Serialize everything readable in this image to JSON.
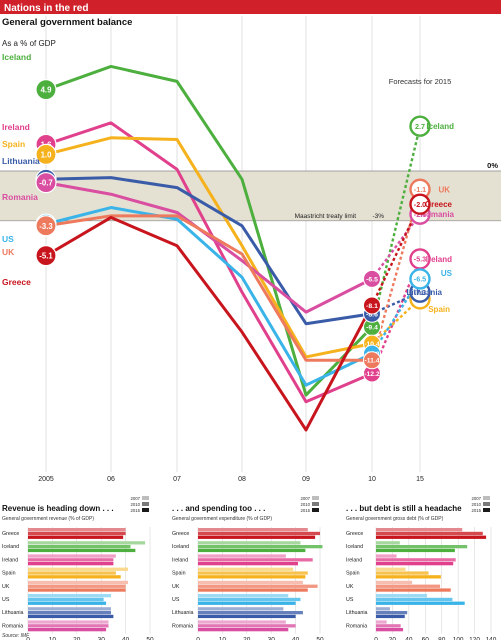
{
  "banner": {
    "title": "Nations in the red",
    "color": "#d0202a"
  },
  "main": {
    "title": "General government balance",
    "subtitle": "As a % of GDP",
    "forecast_note": "Forecasts for 2015",
    "maastricht_label": "Maastricht treaty limit",
    "maastricht_value": "-3%",
    "zero_label": "0%",
    "x_ticks": [
      "2005",
      "06",
      "07",
      "08",
      "09",
      "10",
      "15"
    ]
  },
  "chart_data": [
    {
      "type": "line",
      "title": "General government balance",
      "subtitle": "As a % of GDP",
      "x": [
        "2005",
        "06",
        "07",
        "08",
        "09",
        "10",
        "15"
      ],
      "ylim": [
        -14,
        6
      ],
      "reference_lines": [
        {
          "label": "0%",
          "value": 0
        },
        {
          "label": "Maastricht treaty limit",
          "value": -3
        }
      ],
      "series": [
        {
          "name": "Iceland",
          "color": "#4caf3e",
          "values": [
            4.9,
            6.3,
            5.4,
            -0.5,
            -13.5,
            -9.4,
            2.7
          ],
          "start_label": "4.9",
          "end_label": "2.7"
        },
        {
          "name": "Ireland",
          "color": "#e0408c",
          "values": [
            1.6,
            2.9,
            0.1,
            -7.3,
            -13.9,
            -12.2,
            -5.3
          ],
          "start_label": "1.6",
          "end_label": "-5.3"
        },
        {
          "name": "Spain",
          "color": "#f5b21c",
          "values": [
            1.0,
            2.0,
            1.9,
            -4.5,
            -11.2,
            -10.4,
            -7.7
          ],
          "start_label": "1.0",
          "end_label": "-7.7"
        },
        {
          "name": "Lithuania",
          "color": "#3a5ca8",
          "values": [
            -0.5,
            -0.4,
            -1.0,
            -3.3,
            -9.2,
            -8.6,
            -7.3
          ],
          "start_label": "-0.5",
          "end_label": "-7.3"
        },
        {
          "name": "Romania",
          "color": "#d94ea0",
          "values": [
            -0.7,
            -1.4,
            -2.5,
            -5.4,
            -8.5,
            -6.5,
            -2.6
          ],
          "start_label": "-0.7",
          "end_label": "-2.6"
        },
        {
          "name": "US",
          "color": "#3ab4e8",
          "values": [
            -3.2,
            -2.2,
            -2.9,
            -6.4,
            -12.9,
            -11.0,
            -6.5
          ],
          "start_label": "-3.2",
          "end_label": "-6.5"
        },
        {
          "name": "UK",
          "color": "#ee7a5e",
          "values": [
            -3.3,
            -2.7,
            -2.7,
            -5.0,
            -11.4,
            -11.4,
            -1.1
          ],
          "start_label": "-3.3",
          "end_label": "-1.1"
        },
        {
          "name": "Greece",
          "color": "#c8141c",
          "values": [
            -5.1,
            -2.8,
            -4.5,
            -9.7,
            -15.6,
            -8.1,
            -2.0
          ],
          "start_label": "-5.1",
          "end_label": "-2.0"
        }
      ]
    },
    {
      "type": "bar",
      "title": "Revenue is heading down . . .",
      "subtitle": "General government revenue (% of GDP)",
      "legend": [
        "2007",
        "2010",
        "2015"
      ],
      "categories": [
        "Greece",
        "Iceland",
        "Ireland",
        "Spain",
        "UK",
        "US",
        "Lithuania",
        "Romania"
      ],
      "x_ticks": [
        0,
        10,
        20,
        30,
        40,
        50
      ],
      "xlim": [
        0,
        50
      ],
      "series": [
        {
          "name": "2007",
          "values": [
            40,
            48,
            36,
            41,
            41,
            34,
            34,
            33
          ]
        },
        {
          "name": "2010",
          "values": [
            40,
            42,
            35,
            36,
            40,
            31,
            34,
            33
          ]
        },
        {
          "name": "2015",
          "values": [
            39,
            44,
            35,
            38,
            40,
            32,
            35,
            32
          ]
        }
      ]
    },
    {
      "type": "bar",
      "title": ". . . and spending too . . .",
      "subtitle": "General government expenditure (% of GDP)",
      "legend": [
        "2007",
        "2010",
        "2015"
      ],
      "categories": [
        "Greece",
        "Iceland",
        "Ireland",
        "Spain",
        "UK",
        "US",
        "Lithuania",
        "Romania"
      ],
      "x_ticks": [
        0,
        10,
        20,
        30,
        40,
        50
      ],
      "xlim": [
        0,
        50
      ],
      "series": [
        {
          "name": "2007",
          "values": [
            45,
            42,
            36,
            39,
            43,
            37,
            35,
            36
          ]
        },
        {
          "name": "2010",
          "values": [
            50,
            51,
            47,
            45,
            49,
            42,
            43,
            40
          ]
        },
        {
          "name": "2015",
          "values": [
            48,
            44,
            41,
            44,
            45,
            40,
            40,
            37
          ]
        }
      ]
    },
    {
      "type": "bar",
      "title": ". . . but debt is still a headache",
      "subtitle": "General government gross debt (% of GDP)",
      "legend": [
        "2007",
        "2010",
        "2015"
      ],
      "categories": [
        "Greece",
        "Iceland",
        "Ireland",
        "Spain",
        "UK",
        "US",
        "Lithuania",
        "Romania"
      ],
      "x_ticks": [
        0,
        20,
        40,
        60,
        80,
        100,
        120,
        140
      ],
      "xlim": [
        0,
        140
      ],
      "series": [
        {
          "name": "2007",
          "values": [
            105,
            29,
            25,
            36,
            44,
            62,
            17,
            13
          ]
        },
        {
          "name": "2010",
          "values": [
            130,
            111,
            97,
            64,
            78,
            93,
            38,
            30
          ]
        },
        {
          "name": "2015",
          "values": [
            134,
            96,
            94,
            79,
            91,
            108,
            35,
            33
          ]
        }
      ]
    }
  ],
  "source": "Source: IMF"
}
